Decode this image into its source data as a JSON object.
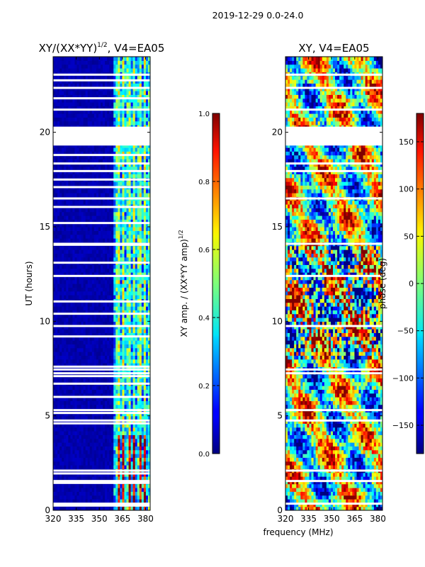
{
  "figure": {
    "suptitle": "2019-12-29 0.0-24.0",
    "xlabel_shared": "frequency (MHz)"
  },
  "chart_data": [
    {
      "type": "heatmap",
      "title_main": "XY/(XX*YY)",
      "title_sup": "1/2",
      "title_rest": ", V4=EA05",
      "ylabel": "UT (hours)",
      "xlim": [
        320,
        383
      ],
      "ylim": [
        0,
        24
      ],
      "xticks": [
        "320",
        "335",
        "350",
        "365",
        "380"
      ],
      "xtick_values": [
        320,
        335,
        350,
        365,
        380
      ],
      "yticks": [
        "0",
        "5",
        "10",
        "15",
        "20"
      ],
      "ytick_values": [
        0,
        5,
        10,
        15,
        20
      ],
      "flagged_hours": [
        0.25,
        0.35,
        1.45,
        1.55,
        1.95,
        2.1,
        4.6,
        4.75,
        5.15,
        5.3,
        6.0,
        6.7,
        7.1,
        7.25,
        7.45,
        7.6,
        9.2,
        9.75,
        10.4,
        11.05,
        12.4,
        13.1,
        14.05,
        14.1,
        15.2,
        16.05,
        16.5,
        17.1,
        17.5,
        17.95,
        18.35,
        18.8,
        21.2,
        21.8,
        22.35,
        22.75,
        23.05
      ],
      "flagged_band": [
        19.3,
        20.3
      ],
      "active_band_mhz": [
        359,
        383
      ]
    },
    {
      "type": "heatmap",
      "title": "XY, V4=EA05",
      "xlim": [
        320,
        383
      ],
      "ylim": [
        0,
        24
      ],
      "xticks": [
        "320",
        "335",
        "350",
        "365",
        "380"
      ],
      "xtick_values": [
        320,
        335,
        350,
        365,
        380
      ],
      "yticks": [
        "0",
        "5",
        "10",
        "15",
        "20"
      ],
      "ytick_values": [
        0,
        5,
        10,
        15,
        20
      ],
      "flagged_hours": [
        0.35,
        1.55,
        2.1,
        4.75,
        5.3,
        7.25,
        7.45,
        9.75,
        12.4,
        14.1,
        16.5,
        17.95,
        18.35,
        21.2,
        22.35,
        23.05
      ],
      "flagged_band": [
        19.3,
        20.3
      ]
    }
  ],
  "colorbars": [
    {
      "label_main": "XY amp. / (XX*YY amp)",
      "label_sup": "1/2",
      "min": 0.0,
      "max": 1.0,
      "ticks": [
        "0.0",
        "0.2",
        "0.4",
        "0.6",
        "0.8",
        "1.0"
      ],
      "tick_values": [
        0.0,
        0.2,
        0.4,
        0.6,
        0.8,
        1.0
      ]
    },
    {
      "label": "phase (deg)",
      "min": -180,
      "max": 180,
      "ticks": [
        "−150",
        "−100",
        "−50",
        "0",
        "50",
        "100",
        "150"
      ],
      "tick_values": [
        -150,
        -100,
        -50,
        0,
        50,
        100,
        150
      ]
    }
  ]
}
